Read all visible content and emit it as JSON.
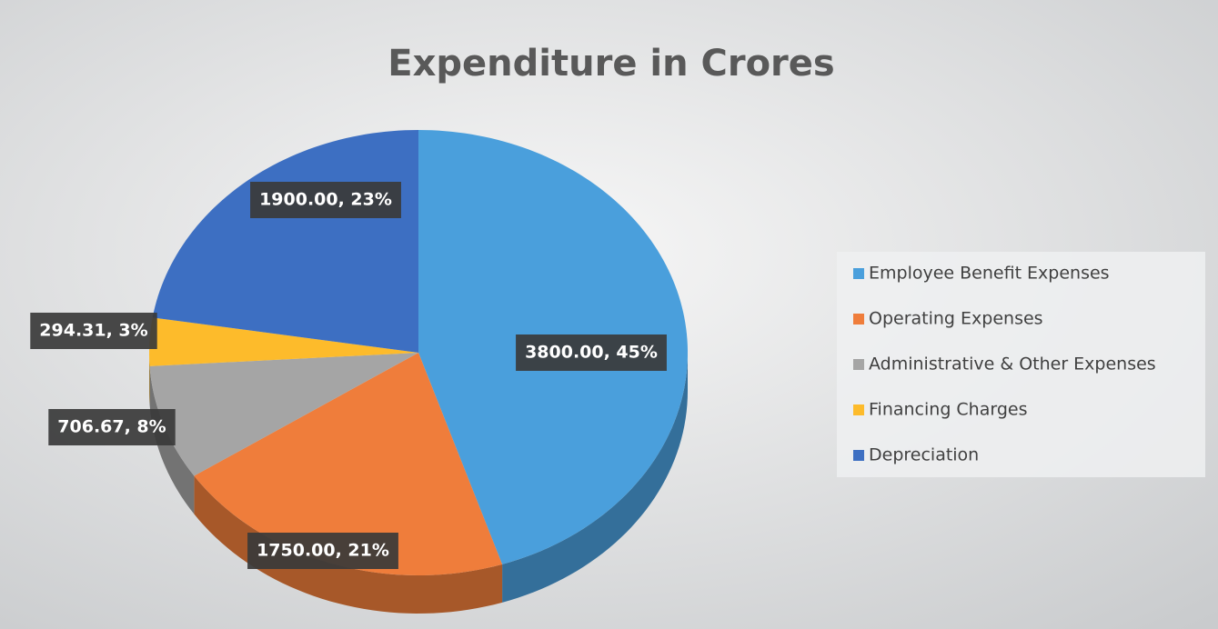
{
  "chart_data": {
    "type": "pie",
    "title": "Expenditure in Crores",
    "categories": [
      "Employee Benefit Expenses",
      "Operating Expenses",
      "Administrative & Other Expenses",
      "Financing Charges",
      "Depreciation"
    ],
    "values": [
      3800,
      1750,
      706.67,
      294.31,
      1900
    ],
    "value_labels": [
      "3800.00, 45%",
      "1750.00, 21%",
      "706.67, 8%",
      "294.31, 3%",
      "1900.00, 23%"
    ],
    "colors": [
      "#4a9fdc",
      "#ef7d3b",
      "#a5a5a5",
      "#fdbb2b",
      "#3d6fc2"
    ],
    "legend": "right"
  }
}
